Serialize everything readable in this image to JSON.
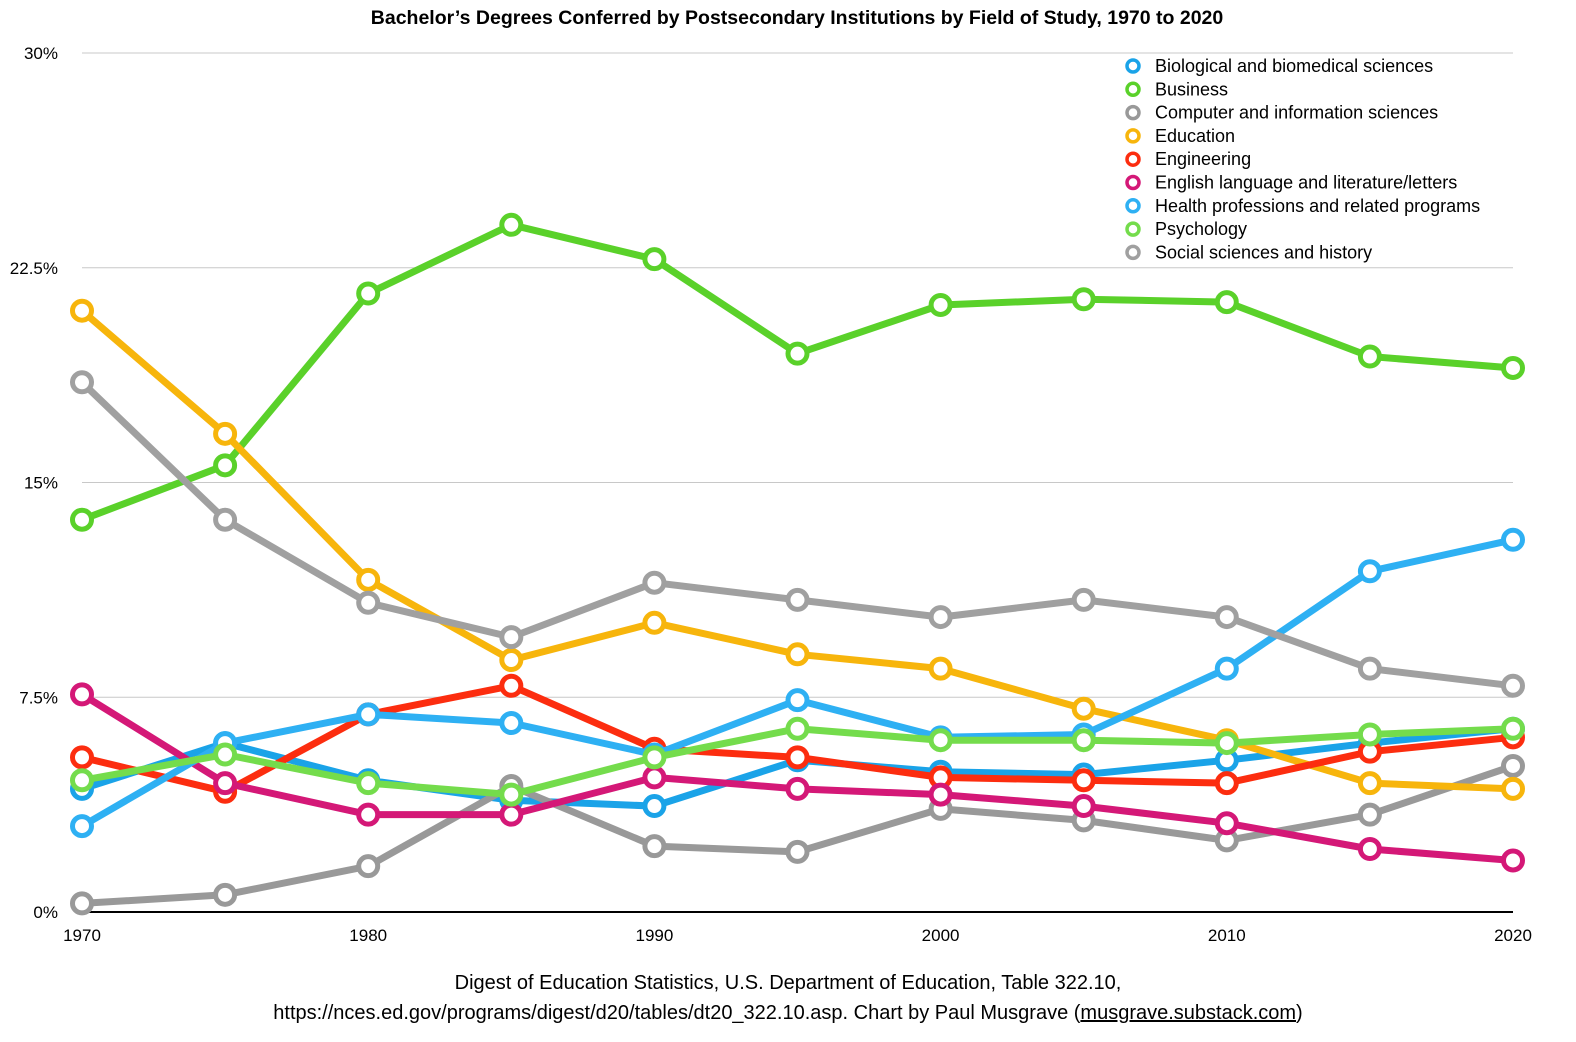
{
  "chart_data": {
    "type": "line",
    "title": "Bachelor’s Degrees Conferred by Postsecondary Institutions by Field of Study, 1970 to 2020",
    "xlabel": "",
    "ylabel": "",
    "x": [
      1970,
      1975,
      1980,
      1985,
      1990,
      1995,
      2000,
      2005,
      2010,
      2015,
      2020
    ],
    "x_tick_values": [
      1970,
      1980,
      1990,
      2000,
      2010,
      2020
    ],
    "x_tick_labels": [
      "1970",
      "1980",
      "1990",
      "2000",
      "2010",
      "2020"
    ],
    "ylim": [
      0,
      30
    ],
    "y_tick_values": [
      0,
      7.5,
      15,
      22.5,
      30
    ],
    "y_tick_labels": [
      "0%",
      "7.5%",
      "15%",
      "22.5%",
      "30%"
    ],
    "grid": true,
    "legend_position": "top-right",
    "series": [
      {
        "name": "Biological and biomedical sciences",
        "color": "#1aa3e8",
        "values": [
          4.3,
          5.9,
          4.6,
          3.9,
          3.7,
          5.3,
          4.9,
          4.8,
          5.3,
          5.9,
          6.4
        ]
      },
      {
        "name": "Business",
        "color": "#5ad12a",
        "values": [
          13.7,
          15.6,
          21.6,
          24.0,
          22.8,
          19.5,
          21.2,
          21.4,
          21.3,
          19.4,
          19.0
        ]
      },
      {
        "name": "Computer and information sciences",
        "color": "#999999",
        "values": [
          0.3,
          0.6,
          1.6,
          4.4,
          2.3,
          2.1,
          3.6,
          3.2,
          2.5,
          3.4,
          5.1
        ]
      },
      {
        "name": "Education",
        "color": "#f7b50c",
        "values": [
          21.0,
          16.7,
          11.6,
          8.8,
          10.1,
          9.0,
          8.5,
          7.1,
          6.0,
          4.5,
          4.3
        ]
      },
      {
        "name": "Engineering",
        "color": "#fc2d0f",
        "values": [
          5.4,
          4.2,
          6.9,
          7.9,
          5.7,
          5.4,
          4.7,
          4.6,
          4.5,
          5.6,
          6.1
        ]
      },
      {
        "name": "English language and literature/letters",
        "color": "#d41877",
        "values": [
          7.6,
          4.5,
          3.4,
          3.4,
          4.7,
          4.3,
          4.1,
          3.7,
          3.1,
          2.2,
          1.8
        ]
      },
      {
        "name": "Health professions and related programs",
        "color": "#2eb0f3",
        "values": [
          3.0,
          5.9,
          6.9,
          6.6,
          5.5,
          7.4,
          6.1,
          6.2,
          8.5,
          11.9,
          13.0
        ]
      },
      {
        "name": "Psychology",
        "color": "#74dc4c",
        "values": [
          4.6,
          5.5,
          4.5,
          4.1,
          5.4,
          6.4,
          6.0,
          6.0,
          5.9,
          6.2,
          6.4
        ]
      },
      {
        "name": "Social sciences and history",
        "color": "#a0a0a0",
        "values": [
          18.5,
          13.7,
          10.8,
          9.6,
          11.5,
          10.9,
          10.3,
          10.9,
          10.3,
          8.5,
          7.9
        ]
      }
    ]
  },
  "source": {
    "line1": "Digest of Education Statistics, U.S. Department of Education, Table 322.10,",
    "line2_prefix": "https://nces.ed.gov/programs/digest/d20/tables/dt20_322.10.asp. Chart by Paul Musgrave (",
    "line2_link": "musgrave.substack.com",
    "line2_suffix": ")"
  }
}
